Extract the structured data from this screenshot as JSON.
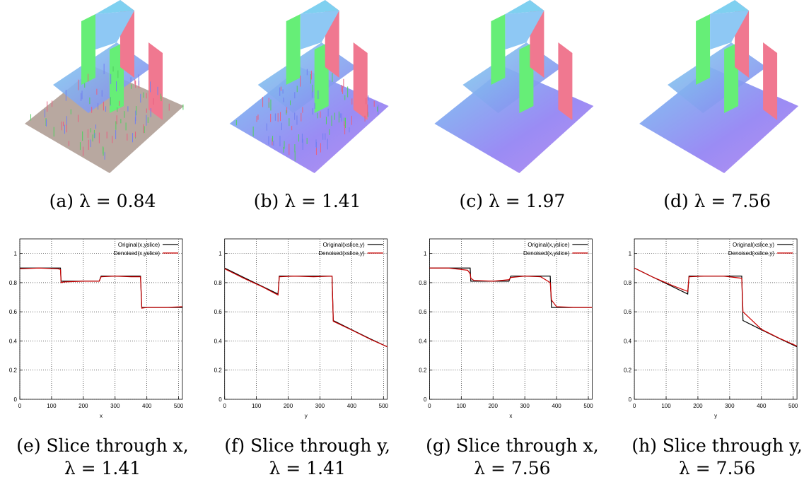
{
  "panels": [
    {
      "caption": "(a) λ = 0.84"
    },
    {
      "caption": "(b) λ = 1.41"
    },
    {
      "caption": "(c) λ = 1.97"
    },
    {
      "caption": "(d) λ = 7.56"
    }
  ],
  "chart_data": [
    {
      "type": "line",
      "caption": [
        "(e) Slice through x,",
        "λ = 1.41"
      ],
      "xlabel": "x",
      "x": [
        0,
        60,
        120,
        128,
        130,
        140,
        200,
        250,
        256,
        300,
        350,
        380,
        384,
        400,
        460,
        512
      ],
      "series": [
        {
          "name": "Original(x,yslice)",
          "color": "#000000",
          "values": [
            0.9,
            0.9,
            0.9,
            0.9,
            0.81,
            0.81,
            0.81,
            0.81,
            0.845,
            0.845,
            0.845,
            0.845,
            0.63,
            0.63,
            0.63,
            0.63
          ]
        },
        {
          "name": "Denoised(x,yslice)",
          "color": "#cc0000",
          "values": [
            0.895,
            0.9,
            0.895,
            0.89,
            0.8,
            0.805,
            0.81,
            0.81,
            0.84,
            0.845,
            0.84,
            0.84,
            0.625,
            0.63,
            0.63,
            0.635
          ]
        }
      ],
      "xlim": [
        0,
        512
      ],
      "ylim": [
        0,
        1.1
      ],
      "xticks": [
        0,
        100,
        200,
        300,
        400,
        500
      ],
      "yticks": [
        0,
        0.2,
        0.4,
        0.6,
        0.8,
        1
      ],
      "grid": true
    },
    {
      "type": "line",
      "caption": [
        "(f) Slice through y,",
        "λ = 1.41"
      ],
      "xlabel": "y",
      "x": [
        0,
        60,
        120,
        168,
        172,
        220,
        280,
        338,
        342,
        400,
        460,
        512
      ],
      "series": [
        {
          "name": "Original(xslice,y)",
          "color": "#000000",
          "values": [
            0.9,
            0.836,
            0.773,
            0.722,
            0.845,
            0.845,
            0.845,
            0.845,
            0.54,
            0.477,
            0.413,
            0.36
          ]
        },
        {
          "name": "Denoised(xslice,y)",
          "color": "#cc0000",
          "values": [
            0.895,
            0.83,
            0.77,
            0.715,
            0.84,
            0.845,
            0.84,
            0.845,
            0.535,
            0.475,
            0.41,
            0.36
          ]
        }
      ],
      "xlim": [
        0,
        512
      ],
      "ylim": [
        0,
        1.1
      ],
      "xticks": [
        0,
        100,
        200,
        300,
        400,
        500
      ],
      "yticks": [
        0,
        0.2,
        0.4,
        0.6,
        0.8,
        1
      ],
      "grid": true
    },
    {
      "type": "line",
      "caption": [
        "(g) Slice through x,",
        "λ = 7.56"
      ],
      "xlabel": "x",
      "x": [
        0,
        60,
        120,
        128,
        130,
        140,
        200,
        250,
        256,
        300,
        350,
        380,
        384,
        400,
        460,
        512
      ],
      "series": [
        {
          "name": "Original(x,yslice)",
          "color": "#000000",
          "values": [
            0.9,
            0.9,
            0.9,
            0.9,
            0.81,
            0.81,
            0.81,
            0.81,
            0.845,
            0.845,
            0.845,
            0.845,
            0.63,
            0.63,
            0.63,
            0.63
          ]
        },
        {
          "name": "Denoised(x,yslice)",
          "color": "#cc0000",
          "values": [
            0.9,
            0.9,
            0.885,
            0.86,
            0.83,
            0.815,
            0.81,
            0.82,
            0.835,
            0.845,
            0.84,
            0.8,
            0.68,
            0.635,
            0.63,
            0.63
          ]
        }
      ],
      "xlim": [
        0,
        512
      ],
      "ylim": [
        0,
        1.1
      ],
      "xticks": [
        0,
        100,
        200,
        300,
        400,
        500
      ],
      "yticks": [
        0,
        0.2,
        0.4,
        0.6,
        0.8,
        1
      ],
      "grid": true
    },
    {
      "type": "line",
      "caption": [
        "(h) Slice through y,",
        "λ = 7.56"
      ],
      "xlabel": "y",
      "x": [
        0,
        60,
        120,
        168,
        172,
        220,
        280,
        338,
        342,
        400,
        460,
        512
      ],
      "series": [
        {
          "name": "Original(xslice,y)",
          "color": "#000000",
          "values": [
            0.9,
            0.836,
            0.773,
            0.722,
            0.845,
            0.845,
            0.845,
            0.845,
            0.54,
            0.477,
            0.413,
            0.36
          ]
        },
        {
          "name": "Denoised(xslice,y)",
          "color": "#cc0000",
          "values": [
            0.9,
            0.836,
            0.78,
            0.74,
            0.84,
            0.845,
            0.845,
            0.83,
            0.6,
            0.48,
            0.415,
            0.365
          ]
        }
      ],
      "xlim": [
        0,
        512
      ],
      "ylim": [
        0,
        1.1
      ],
      "xticks": [
        0,
        100,
        200,
        300,
        400,
        500
      ],
      "yticks": [
        0,
        0.2,
        0.4,
        0.6,
        0.8,
        1
      ],
      "grid": true
    }
  ]
}
